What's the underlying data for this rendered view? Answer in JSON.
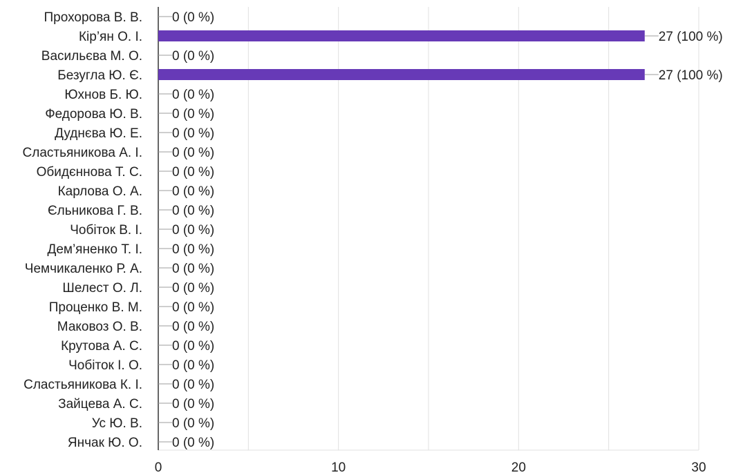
{
  "chart_data": {
    "type": "bar",
    "orientation": "horizontal",
    "categories": [
      "Прохорова В. В.",
      "Кір’ян О. І.",
      "Васильєва М. О.",
      "Безугла Ю. Є.",
      "Юхнов Б. Ю.",
      "Федорова Ю. В.",
      "Дуднєва Ю. Е.",
      "Сластьяникова А. І.",
      "Обидєннова Т. С.",
      "Карлова О. А.",
      "Єльникова Г. В.",
      "Чобіток В. І.",
      "Дем’яненко Т. І.",
      "Чемчикаленко Р. А.",
      "Шелест О. Л.",
      "Проценко В. М.",
      "Маковоз О. В.",
      "Крутова А. С.",
      "Чобіток І. О.",
      "Сластьяникова К. І.",
      "Зайцева А. С.",
      "Ус Ю. В.",
      "Янчак Ю. О."
    ],
    "values": [
      0,
      27,
      0,
      27,
      0,
      0,
      0,
      0,
      0,
      0,
      0,
      0,
      0,
      0,
      0,
      0,
      0,
      0,
      0,
      0,
      0,
      0,
      0
    ],
    "value_labels": [
      "0 (0 %)",
      "27 (100 %)",
      "0 (0 %)",
      "27 (100 %)",
      "0 (0 %)",
      "0 (0 %)",
      "0 (0 %)",
      "0 (0 %)",
      "0 (0 %)",
      "0 (0 %)",
      "0 (0 %)",
      "0 (0 %)",
      "0 (0 %)",
      "0 (0 %)",
      "0 (0 %)",
      "0 (0 %)",
      "0 (0 %)",
      "0 (0 %)",
      "0 (0 %)",
      "0 (0 %)",
      "0 (0 %)",
      "0 (0 %)",
      "0 (0 %)"
    ],
    "xlim": [
      0,
      30
    ],
    "xticks": [
      0,
      10,
      20,
      30
    ],
    "grid": true,
    "title": "",
    "xlabel": "",
    "ylabel": "",
    "colors": {
      "bar": "#673ab7",
      "grid": "#e0e0e0",
      "axis": "#333333",
      "leader": "#9e9e9e"
    }
  }
}
